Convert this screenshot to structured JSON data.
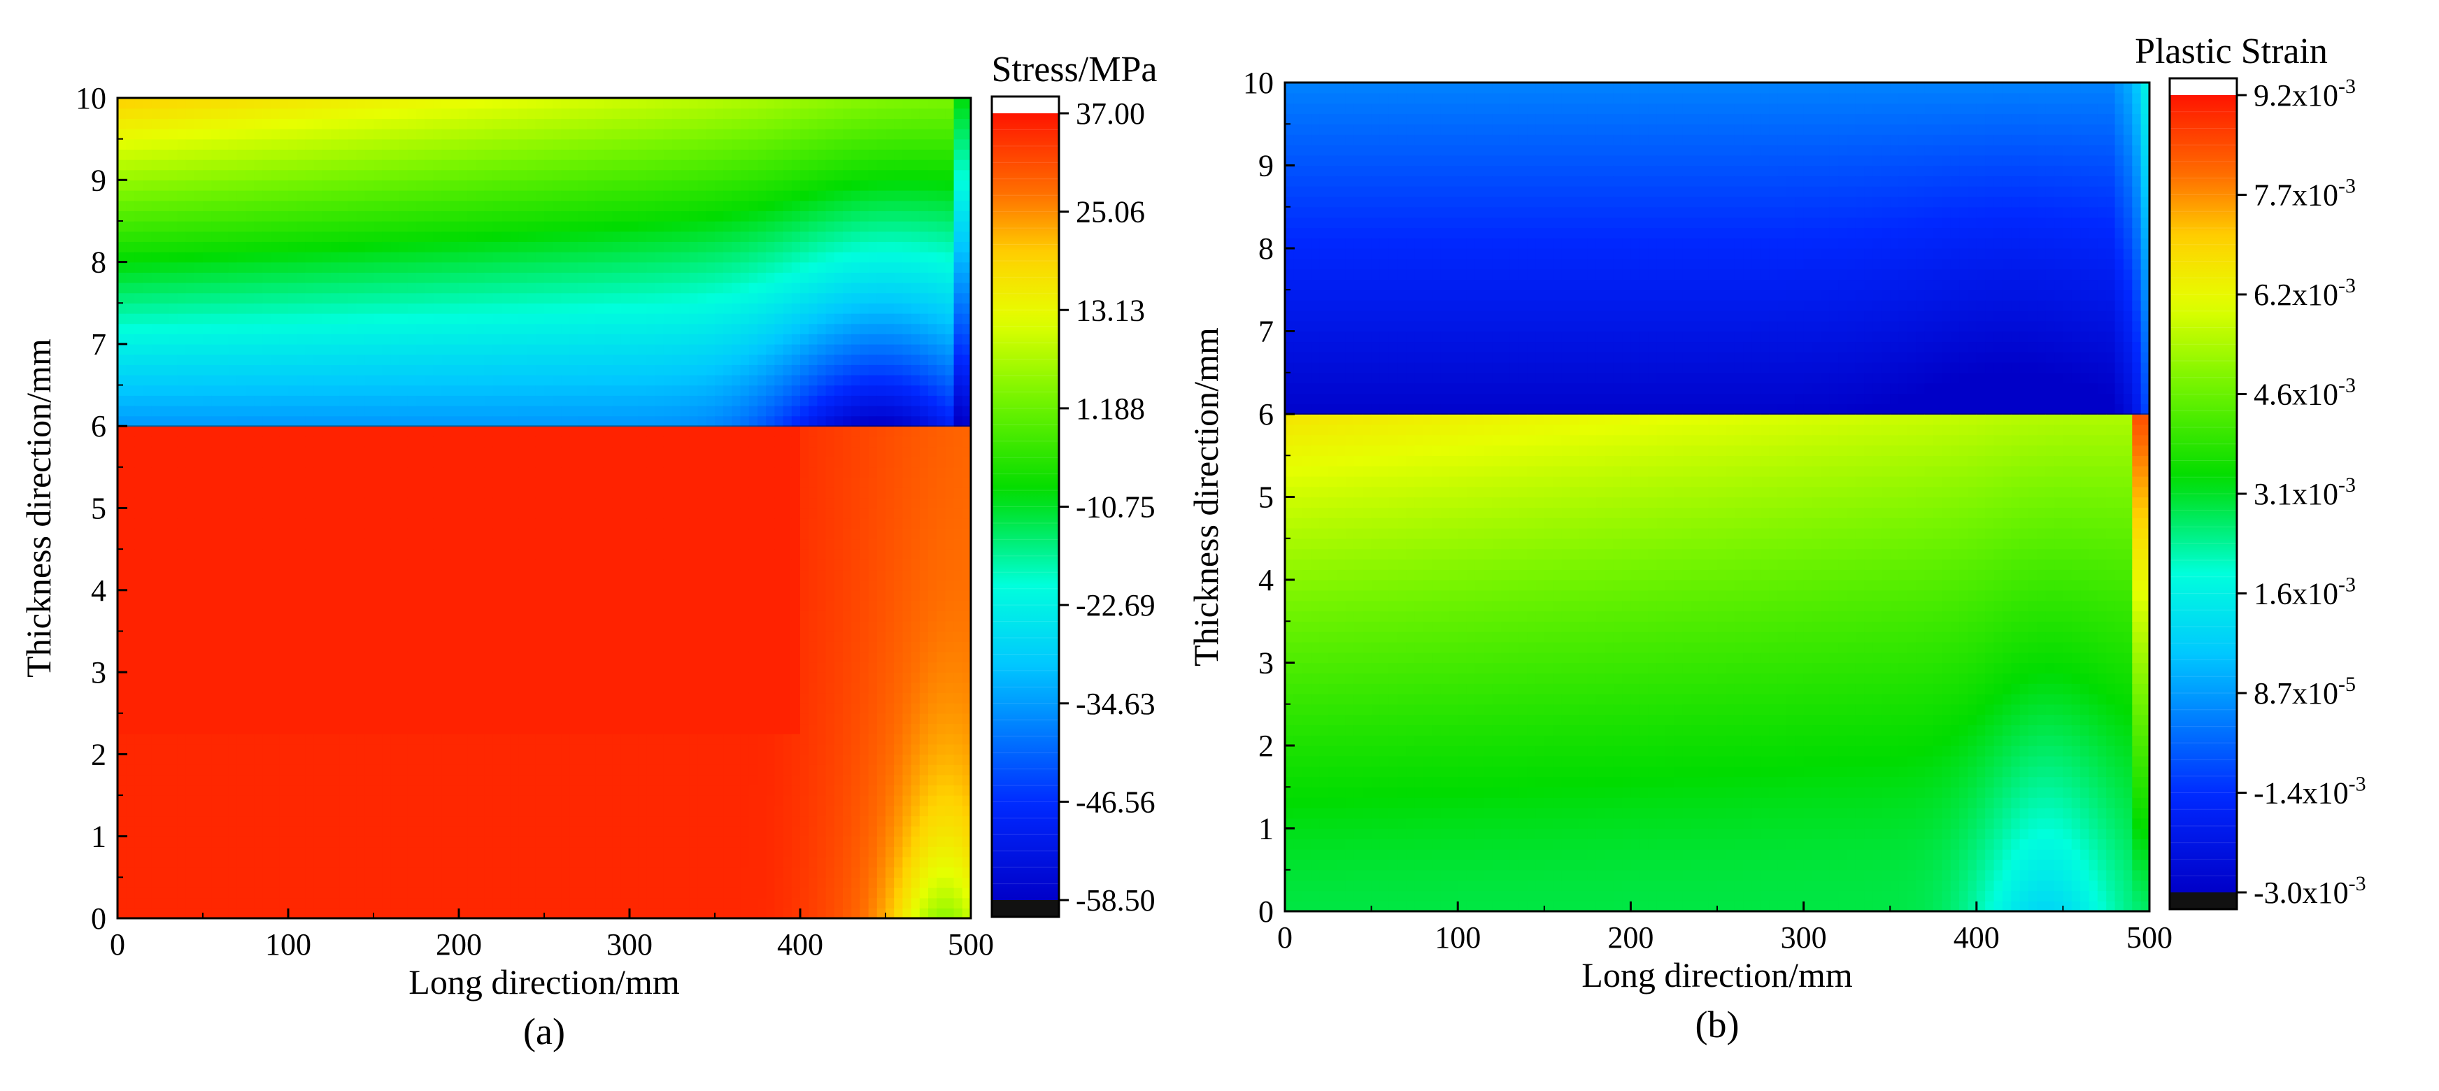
{
  "chart_data": [
    {
      "type": "heatmap",
      "panel_label": "(a)",
      "title": "",
      "xlabel": "Long direction/mm",
      "ylabel": "Thickness direction/mm",
      "xlim": [
        0,
        500
      ],
      "ylim": [
        0,
        10
      ],
      "x_ticks": [
        "0",
        "100",
        "200",
        "300",
        "400",
        "500"
      ],
      "y_ticks": [
        "0",
        "1",
        "2",
        "3",
        "4",
        "5",
        "6",
        "7",
        "8",
        "9",
        "10"
      ],
      "interface_y": 6,
      "colorbar": {
        "title": "Stress/MPa",
        "min": -58.5,
        "max": 37.0,
        "tick_labels": [
          "37.00",
          "25.06",
          "13.13",
          "1.188",
          "-10.75",
          "-22.69",
          "-34.63",
          "-46.56",
          "-58.50"
        ]
      },
      "field_description": {
        "upper_layer_6_to_10mm": "compressive stress: about -35 MPa near y=6, rising toward +10..+20 MPa near y=10 at x=0; minimum about -58 MPa near x=420..480, y=6",
        "lower_layer_0_to_6mm": "tensile stress about +35 MPa, decreasing toward x=500 with minimum about +15 MPa near x=480, y=0"
      }
    },
    {
      "type": "heatmap",
      "panel_label": "(b)",
      "title": "",
      "xlabel": "Long direction/mm",
      "ylabel": "Thickness direction/mm",
      "xlim": [
        0,
        500
      ],
      "ylim": [
        0,
        10
      ],
      "x_ticks": [
        "0",
        "100",
        "200",
        "300",
        "400",
        "500"
      ],
      "y_ticks": [
        "0",
        "1",
        "2",
        "3",
        "4",
        "5",
        "6",
        "7",
        "8",
        "9",
        "10"
      ],
      "interface_y": 6,
      "colorbar": {
        "title": "Plastic Strain",
        "min": -0.003,
        "max": 0.0092,
        "tick_labels": [
          {
            "base": "9.2x10",
            "exp": "-3"
          },
          {
            "base": "7.7x10",
            "exp": "-3"
          },
          {
            "base": "6.2x10",
            "exp": "-3"
          },
          {
            "base": "4.6x10",
            "exp": "-3"
          },
          {
            "base": "3.1x10",
            "exp": "-3"
          },
          {
            "base": "1.6x10",
            "exp": "-3"
          },
          {
            "base": "8.7x10",
            "exp": "-5"
          },
          {
            "base": "-1.4x10",
            "exp": "-3"
          },
          {
            "base": "-3.0x10",
            "exp": "-3"
          }
        ]
      },
      "field_description": {
        "upper_layer_6_to_10mm": "negative strain about -2.9e-3 near y=6 rising to about -0.3e-3 near y=10",
        "lower_layer_0_to_6mm": "positive strain about 6.5e-3 near y=6 at x=0, decreasing to about 3e-3 near y=0; minimum about 1e-3 near x=440, y=0; spike near x=495"
      }
    }
  ]
}
